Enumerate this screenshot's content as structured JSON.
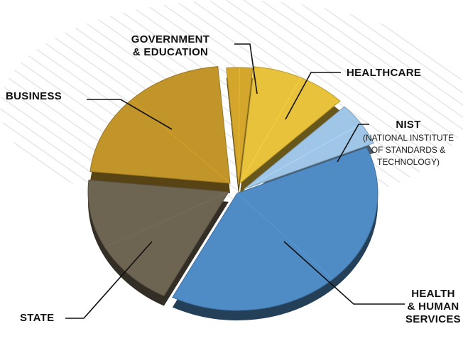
{
  "chart_data": {
    "type": "pie",
    "title": "",
    "categories": [
      "Government & Education",
      "Healthcare",
      "NIST",
      "Health & Human Services",
      "State",
      "Business"
    ],
    "labels": [
      {
        "lines": [
          "GOVERNMENT",
          "& EDUCATION"
        ]
      },
      {
        "lines": [
          "HEALTHCARE"
        ]
      },
      {
        "lines": [
          "NIST"
        ],
        "sub": [
          "(NATIONAL INSTITUTE",
          "OF STANDARDS &",
          "TECHNOLOGY)"
        ]
      },
      {
        "lines": [
          "HEALTH",
          "& HUMAN",
          "SERVICES"
        ]
      },
      {
        "lines": [
          "STATE"
        ]
      },
      {
        "lines": [
          "BUSINESS"
        ]
      }
    ],
    "values": [
      3,
      11,
      6,
      39,
      19,
      22
    ],
    "unit": "percent",
    "colors": [
      "#d4a72c",
      "#e8c23a",
      "#9fc6e6",
      "#4f8bc4",
      "#6e6452",
      "#c2952a"
    ],
    "exploded": [
      "Government & Education",
      "Healthcare",
      "Business",
      "State",
      "Health & Human Services"
    ],
    "legend": "none",
    "grid": false
  }
}
